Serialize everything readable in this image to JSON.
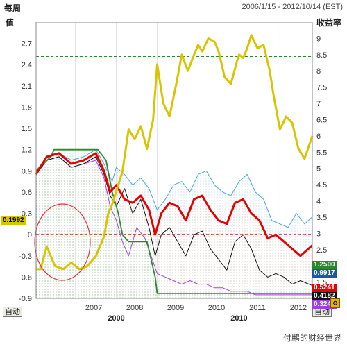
{
  "header": {
    "title": "每周",
    "date_range": "2006/1/15 - 2012/10/14 (EST)"
  },
  "axes": {
    "left_label": "值",
    "right_label": "收益率",
    "auto_label": "自动"
  },
  "watermark": "付鹏的财经世界",
  "colors": {
    "yield": "#d8c400",
    "green": "#2a8a2a",
    "red": "#e60000",
    "blue": "#4aa3e0",
    "black": "#111111",
    "purple": "#a040e0",
    "dashed_green": "#2a8a2a",
    "dashed_red": "#cc0000"
  },
  "chart_data": {
    "type": "line",
    "ylim_left": [
      -0.9,
      3.0
    ],
    "ylim_right": [
      1.0,
      9.5
    ],
    "xlim": [
      2006.04,
      2012.79
    ],
    "left_ticks": [
      "2.7",
      "2.4",
      "2.1",
      "1.8",
      "1.5",
      "1.2",
      "0.9",
      "0.6",
      "0.3",
      "0",
      "-0.3",
      "-0.6",
      "-0.9"
    ],
    "right_ticks": [
      "9",
      "8.5",
      "8",
      "7.5",
      "7",
      "6.5",
      "6",
      "5.5",
      "5",
      "4.5",
      "4",
      "3.5",
      "3",
      "2.5",
      "2",
      "1.5"
    ],
    "x_ticks": [
      "2007",
      "2008",
      "2009",
      "2010",
      "2011",
      "2012"
    ],
    "x_major_labels": [
      "2000",
      "2010"
    ],
    "reference_lines": [
      {
        "axis": "right",
        "value": 8.45,
        "style": "dashed",
        "color": "green"
      },
      {
        "axis": "left",
        "value": 0.0,
        "style": "dashed",
        "color": "red"
      }
    ],
    "last_value_tags": [
      {
        "axis": "left",
        "value": 0.1992,
        "label": "0.1992",
        "color": "yellow"
      },
      {
        "axis": "right",
        "value": 1.25,
        "label": "1.2500",
        "color": "green"
      },
      {
        "axis": "right",
        "value": 0.9917,
        "label": "0.9917",
        "color": "blue"
      },
      {
        "axis": "right",
        "value": 0.5241,
        "label": "0.5241",
        "color": "red"
      },
      {
        "axis": "right",
        "value": 0.4182,
        "label": "0.4182",
        "color": "black"
      },
      {
        "axis": "right",
        "value": 0.3249,
        "label": "0.3249",
        "color": "purple"
      }
    ],
    "series": [
      {
        "color": "yield",
        "axis": "right",
        "x": [
          2006.04,
          2006.15,
          2006.3,
          2006.5,
          2006.7,
          2006.9,
          2007.1,
          2007.3,
          2007.5,
          2007.7,
          2007.8,
          2007.9,
          2008.0,
          2008.15,
          2008.3,
          2008.45,
          2008.6,
          2008.75,
          2008.9,
          2009.0,
          2009.15,
          2009.3,
          2009.45,
          2009.6,
          2009.75,
          2009.9,
          2010.0,
          2010.1,
          2010.25,
          2010.4,
          2010.5,
          2010.65,
          2010.8,
          2010.95,
          2011.0,
          2011.1,
          2011.2,
          2011.3,
          2011.45,
          2011.6,
          2011.75,
          2011.85,
          2012.0,
          2012.15,
          2012.3,
          2012.45,
          2012.6,
          2012.79
        ],
        "y": [
          1.9,
          1.9,
          2.6,
          2.0,
          1.9,
          2.1,
          1.9,
          2.0,
          2.3,
          2.9,
          3.6,
          3.9,
          4.3,
          4.9,
          6.2,
          5.9,
          6.3,
          5.6,
          6.5,
          8.2,
          7.0,
          6.6,
          7.5,
          8.5,
          8.0,
          8.5,
          8.8,
          8.6,
          9.0,
          8.9,
          8.6,
          7.8,
          7.6,
          8.3,
          8.5,
          8.4,
          8.7,
          9.1,
          8.7,
          8.8,
          8.0,
          7.2,
          6.2,
          6.6,
          6.4,
          5.6,
          5.3,
          6.0
        ]
      },
      {
        "color": "green",
        "axis": "left",
        "x": [
          2006.04,
          2006.4,
          2006.48,
          2007.55,
          2007.75,
          2007.9,
          2008.05,
          2008.15,
          2008.3,
          2008.75,
          2008.95,
          2009.0,
          2012.79
        ],
        "y": [
          0.9,
          1.1,
          1.2,
          1.2,
          1.05,
          0.6,
          0.3,
          0.0,
          -0.1,
          -0.1,
          -0.6,
          -0.83,
          -0.83
        ]
      },
      {
        "color": "blue",
        "axis": "left",
        "x": [
          2006.04,
          2006.3,
          2006.6,
          2006.9,
          2007.2,
          2007.5,
          2007.7,
          2007.9,
          2008.0,
          2008.2,
          2008.4,
          2008.6,
          2008.8,
          2009.0,
          2009.2,
          2009.4,
          2009.6,
          2009.8,
          2010.0,
          2010.2,
          2010.4,
          2010.6,
          2010.8,
          2011.0,
          2011.2,
          2011.4,
          2011.6,
          2011.8,
          2012.0,
          2012.2,
          2012.4,
          2012.6,
          2012.79
        ],
        "y": [
          0.9,
          1.1,
          1.15,
          1.05,
          1.1,
          1.2,
          1.0,
          0.75,
          0.95,
          0.85,
          0.7,
          0.8,
          0.65,
          0.35,
          0.5,
          0.7,
          0.75,
          0.6,
          0.85,
          0.9,
          0.7,
          0.6,
          0.55,
          0.75,
          0.85,
          0.6,
          0.5,
          0.2,
          0.15,
          0.1,
          0.3,
          0.15,
          0.25
        ]
      },
      {
        "color": "red",
        "axis": "left",
        "x": [
          2006.04,
          2006.3,
          2006.6,
          2006.9,
          2007.2,
          2007.5,
          2007.7,
          2007.85,
          2008.0,
          2008.2,
          2008.4,
          2008.6,
          2008.8,
          2008.95,
          2009.1,
          2009.3,
          2009.5,
          2009.7,
          2009.9,
          2010.1,
          2010.3,
          2010.5,
          2010.7,
          2010.9,
          2011.1,
          2011.3,
          2011.5,
          2011.7,
          2011.9,
          2012.1,
          2012.3,
          2012.5,
          2012.79
        ],
        "y": [
          0.85,
          1.1,
          1.15,
          1.0,
          1.05,
          1.15,
          0.9,
          0.6,
          0.7,
          0.5,
          0.45,
          0.55,
          0.35,
          0.0,
          0.3,
          0.45,
          0.4,
          0.2,
          0.5,
          0.55,
          0.35,
          0.2,
          0.15,
          0.45,
          0.5,
          0.3,
          0.2,
          -0.05,
          0.0,
          -0.1,
          -0.2,
          -0.3,
          -0.15
        ]
      },
      {
        "color": "black",
        "axis": "left",
        "x": [
          2006.04,
          2006.3,
          2006.6,
          2006.9,
          2007.2,
          2007.5,
          2007.7,
          2007.85,
          2008.0,
          2008.2,
          2008.4,
          2008.6,
          2008.8,
          2008.95,
          2009.1,
          2009.3,
          2009.5,
          2009.7,
          2009.9,
          2010.1,
          2010.3,
          2010.5,
          2010.7,
          2010.9,
          2011.1,
          2011.3,
          2011.5,
          2011.7,
          2011.9,
          2012.1,
          2012.3,
          2012.5,
          2012.79
        ],
        "y": [
          0.85,
          1.05,
          1.1,
          0.95,
          1.0,
          1.1,
          0.85,
          0.55,
          0.4,
          0.65,
          0.3,
          0.5,
          0.1,
          -0.3,
          0.0,
          0.1,
          -0.1,
          -0.3,
          0.0,
          0.05,
          -0.2,
          -0.35,
          -0.5,
          -0.1,
          0.0,
          -0.2,
          -0.5,
          -0.6,
          -0.55,
          -0.6,
          -0.7,
          -0.65,
          -0.72
        ]
      },
      {
        "color": "purple",
        "axis": "left",
        "x": [
          2006.04,
          2006.3,
          2006.6,
          2006.9,
          2007.2,
          2007.5,
          2007.7,
          2007.85,
          2008.0,
          2008.15,
          2008.3,
          2008.5,
          2008.7,
          2008.85,
          2009.0,
          2009.2,
          2009.4,
          2009.6,
          2009.8,
          2010.0,
          2010.2,
          2010.4,
          2010.6,
          2010.8,
          2011.0,
          2011.2,
          2011.4,
          2011.6,
          2011.8,
          2012.0,
          2012.2,
          2012.4,
          2012.6,
          2012.79
        ],
        "y": [
          0.85,
          1.05,
          1.1,
          0.95,
          1.0,
          1.05,
          0.8,
          0.4,
          0.2,
          -0.1,
          -0.3,
          0.1,
          -0.05,
          -0.3,
          -0.55,
          -0.6,
          -0.65,
          -0.7,
          -0.65,
          -0.7,
          -0.7,
          -0.75,
          -0.75,
          -0.8,
          -0.8,
          -0.8,
          -0.85,
          -0.85,
          -0.85,
          -0.85,
          -0.85,
          -0.85,
          -0.85,
          -0.85
        ]
      }
    ]
  }
}
